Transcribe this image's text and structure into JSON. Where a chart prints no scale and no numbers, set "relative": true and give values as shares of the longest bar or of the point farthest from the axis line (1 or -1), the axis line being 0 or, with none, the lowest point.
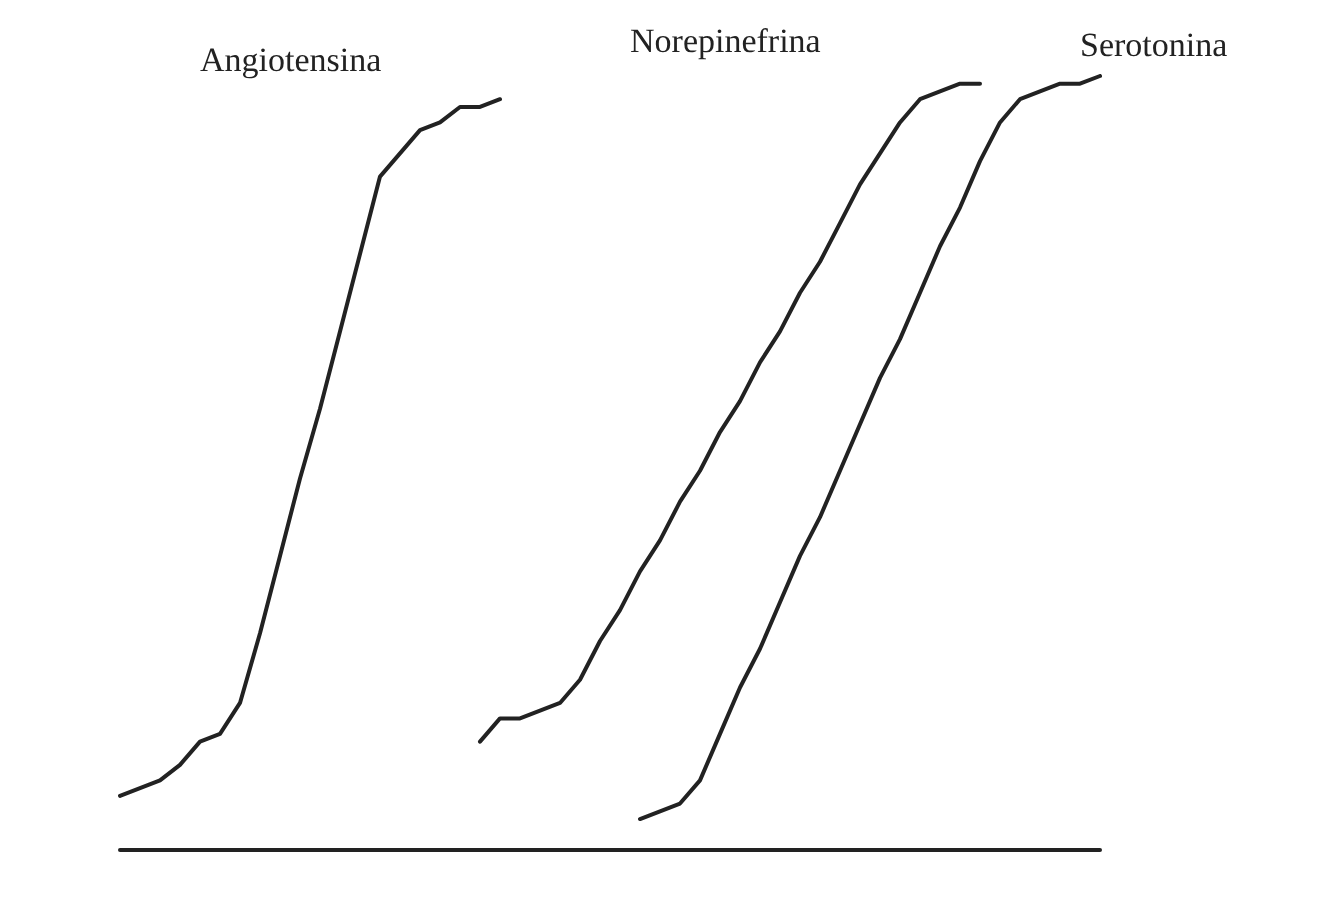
{
  "chart_data": {
    "type": "line",
    "relative": true,
    "grid": false,
    "legend": false,
    "marker": "none",
    "line_style": "solid",
    "categories": [
      null,
      null,
      null,
      null,
      null,
      null,
      null,
      null,
      null,
      null,
      null,
      null,
      null,
      null,
      null,
      null,
      null,
      null,
      null,
      null,
      null,
      null,
      null,
      null,
      null,
      null,
      null,
      null,
      null,
      null,
      null,
      null,
      null,
      null,
      null,
      null,
      null,
      null,
      null,
      null,
      null,
      null,
      null,
      null,
      null,
      null,
      null,
      null,
      null,
      null
    ],
    "series": [
      {
        "name": "Angiotensina",
        "color": "#222222",
        "values": [
          0.07,
          0.08,
          0.09,
          0.11,
          0.14,
          0.15,
          0.19,
          0.28,
          0.38,
          0.48,
          0.57,
          0.67,
          0.77,
          0.87,
          0.9,
          0.93,
          0.94,
          0.96,
          0.96,
          0.97,
          null,
          null,
          null,
          null,
          null,
          null,
          null,
          null,
          null,
          null,
          null,
          null,
          null,
          null,
          null,
          null,
          null,
          null,
          null,
          null,
          null,
          null,
          null,
          null,
          null,
          null,
          null,
          null,
          null,
          null
        ]
      },
      {
        "name": "Norepinefrina",
        "color": "#222222",
        "values": [
          null,
          null,
          null,
          null,
          null,
          null,
          null,
          null,
          null,
          null,
          null,
          null,
          null,
          null,
          null,
          null,
          null,
          null,
          0.14,
          0.17,
          0.17,
          0.18,
          0.19,
          0.22,
          0.27,
          0.31,
          0.36,
          0.4,
          0.45,
          0.49,
          0.54,
          0.58,
          0.63,
          0.67,
          0.72,
          0.76,
          0.81,
          0.86,
          0.9,
          0.94,
          0.97,
          0.98,
          0.99,
          0.99,
          null,
          null,
          null,
          null,
          null,
          null
        ]
      },
      {
        "name": "Serotonina",
        "color": "#222222",
        "values": [
          null,
          null,
          null,
          null,
          null,
          null,
          null,
          null,
          null,
          null,
          null,
          null,
          null,
          null,
          null,
          null,
          null,
          null,
          null,
          null,
          null,
          null,
          null,
          null,
          null,
          null,
          0.04,
          0.05,
          0.06,
          0.09,
          0.15,
          0.21,
          0.26,
          0.32,
          0.38,
          0.43,
          0.49,
          0.55,
          0.61,
          0.66,
          0.72,
          0.78,
          0.83,
          0.89,
          0.94,
          0.97,
          0.98,
          0.99,
          0.99,
          1
        ]
      }
    ]
  }
}
